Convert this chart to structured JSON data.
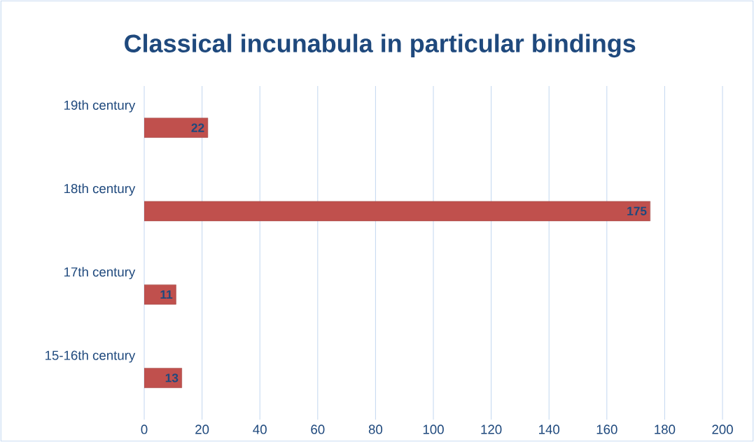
{
  "chart_data": {
    "type": "bar",
    "orientation": "horizontal",
    "title": "Classical incunabula in particular bindings",
    "categories": [
      "19th century",
      "18th century",
      "17th century",
      "15-16th century"
    ],
    "values": [
      22,
      175,
      11,
      13
    ],
    "color": "#c0504d",
    "data_labels": true,
    "xlim": [
      0,
      200
    ],
    "xticks": [
      0,
      20,
      40,
      60,
      80,
      100,
      120,
      140,
      160,
      180,
      200
    ],
    "grid": "x"
  }
}
